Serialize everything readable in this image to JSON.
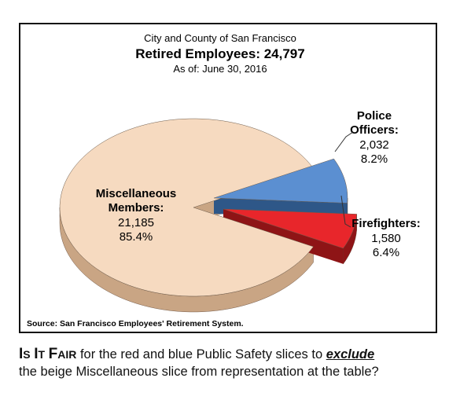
{
  "chart_data": {
    "type": "pie",
    "title_line1": "City and County of San Francisco",
    "title_line2": "Retired Employees:  24,797",
    "title_line3": "As of:  June 30, 2016",
    "total": 24797,
    "slices": [
      {
        "label_lines": [
          "Miscellaneous",
          "Members:"
        ],
        "value": 21185,
        "value_text": "21,185",
        "percent": 85.4,
        "percent_text": "85.4%",
        "color": "#f6dac0",
        "side": "#c9a584"
      },
      {
        "label_lines": [
          "Police",
          "Officers:"
        ],
        "value": 2032,
        "value_text": "2,032",
        "percent": 8.2,
        "percent_text": "8.2%",
        "color": "#5b8fd1",
        "side": "#2e5788"
      },
      {
        "label_lines": [
          "Firefighters:"
        ],
        "value": 1580,
        "value_text": "1,580",
        "percent": 6.4,
        "percent_text": "6.4%",
        "color": "#e8262b",
        "side": "#8e1416"
      }
    ],
    "source": "Source:  San Francisco Employees' Retirement System."
  },
  "caption": {
    "q_cap_i": "I",
    "q_small_s": "S",
    "q_space": " ",
    "q_cap_i2": "I",
    "q_small_t": "T",
    "q_cap_f": "F",
    "q_small_air": "AIR",
    "text_a": " for the red and blue Public Safety slices to ",
    "emph": "exclude",
    "line2": "the beige Miscellaneous slice from representation at the table?"
  }
}
